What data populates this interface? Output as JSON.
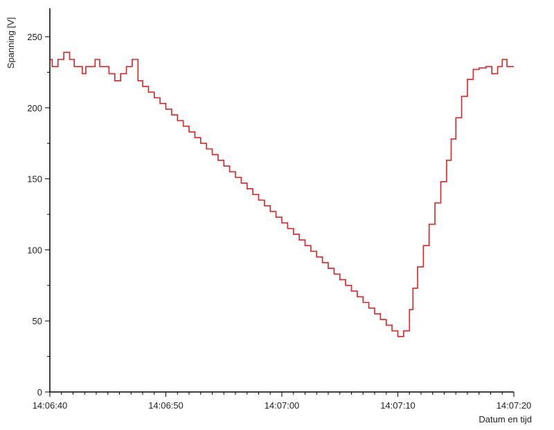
{
  "chart_data": {
    "type": "line",
    "xlabel": "Datum en tijd",
    "ylabel": "Spanning [V]",
    "xlim": [
      0,
      40
    ],
    "ylim": [
      0,
      270
    ],
    "x_ticks": [
      {
        "value": 0,
        "label": "14:06:40"
      },
      {
        "value": 10,
        "label": "14:06:50"
      },
      {
        "value": 20,
        "label": "14:07:00"
      },
      {
        "value": 30,
        "label": "14:07:10"
      },
      {
        "value": 40,
        "label": "14:07:20"
      }
    ],
    "y_ticks": [
      0,
      50,
      100,
      150,
      200,
      250
    ],
    "grid": false,
    "series": [
      {
        "color": "#e02020",
        "x": [
          0.0,
          0.2,
          0.7,
          1.2,
          1.7,
          2.1,
          2.8,
          3.1,
          3.9,
          4.3,
          5.1,
          5.6,
          6.1,
          6.6,
          7.1,
          7.6,
          8.0,
          8.5,
          9.0,
          9.5,
          10.0,
          10.5,
          11.0,
          11.5,
          12.0,
          12.5,
          13.0,
          13.5,
          14.0,
          14.5,
          15.0,
          15.5,
          16.0,
          16.5,
          17.0,
          17.5,
          18.0,
          18.5,
          19.0,
          19.5,
          20.0,
          20.5,
          21.0,
          21.5,
          22.0,
          22.5,
          23.0,
          23.5,
          24.0,
          24.5,
          25.0,
          25.5,
          26.0,
          26.5,
          27.0,
          27.5,
          28.0,
          28.5,
          29.0,
          29.5,
          30.0,
          30.5,
          31.0,
          31.3,
          31.7,
          32.2,
          32.7,
          33.2,
          33.7,
          34.2,
          34.6,
          35.0,
          35.5,
          36.0,
          36.5,
          37.0,
          37.6,
          38.1,
          38.6,
          39.0,
          39.4,
          39.8,
          40.0
        ],
        "y": [
          234,
          229,
          234,
          239,
          234,
          229,
          224,
          229,
          234,
          229,
          224,
          219,
          224,
          229,
          234,
          219,
          215,
          211,
          207,
          203,
          199,
          195,
          191,
          187,
          183,
          179,
          175,
          171,
          167,
          163,
          159,
          155,
          151,
          147,
          143,
          139,
          135,
          131,
          127,
          123,
          119,
          115,
          111,
          107,
          103,
          99,
          95,
          91,
          87,
          83,
          79,
          75,
          71,
          67,
          63,
          59,
          55,
          51,
          47,
          43,
          39,
          43,
          58,
          73,
          88,
          103,
          118,
          133,
          148,
          163,
          178,
          193,
          208,
          220,
          227,
          228,
          229,
          224,
          229,
          234,
          229,
          229,
          229
        ]
      }
    ]
  }
}
